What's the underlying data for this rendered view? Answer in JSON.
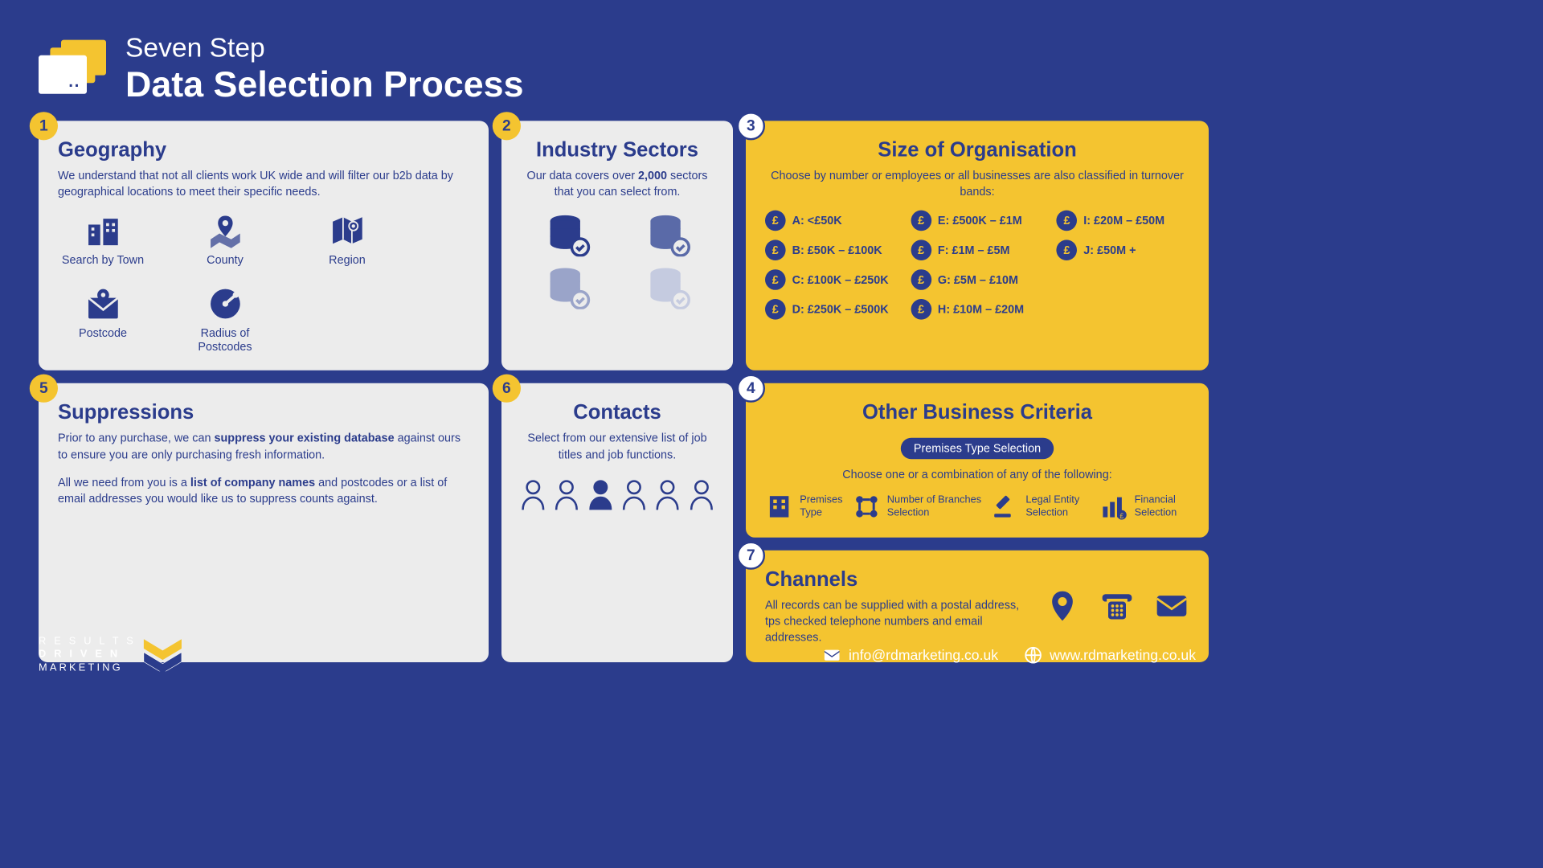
{
  "colors": {
    "bg": "#2b3c8c",
    "yellow": "#f4c430",
    "white": "#ececec",
    "text": "#2b3c8c"
  },
  "title": {
    "line1": "Seven Step",
    "line2": "Data Selection Process"
  },
  "step1": {
    "num": "1",
    "title": "Geography",
    "desc": "We understand that not all clients work UK wide and will filter our b2b data by geographical locations to meet their specific needs.",
    "items": [
      "Search by Town",
      "County",
      "Region",
      "Postcode",
      "Radius of Postcodes"
    ]
  },
  "step2": {
    "num": "2",
    "title": "Industry Sectors",
    "desc_pre": "Our data covers over ",
    "desc_bold": "2,000",
    "desc_post": " sectors that you can select from."
  },
  "step3": {
    "num": "3",
    "title": "Size of Organisation",
    "desc": "Choose by number or employees or all businesses are also classified in turnover bands:",
    "bands": [
      "A: <£50K",
      "E: £500K – £1M",
      "I: £20M – £50M",
      "B: £50K – £100K",
      "F: £1M – £5M",
      "J: £50M +",
      "C: £100K – £250K",
      "G: £5M – £10M",
      "",
      "D: £250K – £500K",
      "H: £10M – £20M",
      ""
    ]
  },
  "step4": {
    "num": "4",
    "title": "Other Business Criteria",
    "pill": "Premises Type Selection",
    "desc": "Choose one or a combination of any of the following:",
    "items": [
      "Premises Type",
      "Number of Branches Selection",
      "Legal Entity Selection",
      "Financial Selection"
    ]
  },
  "step5": {
    "num": "5",
    "title": "Suppressions",
    "p1_pre": "Prior to any purchase, we can ",
    "p1_bold": "suppress your existing database",
    "p1_post": " against ours to ensure you are only purchasing fresh information.",
    "p2_pre": "All we need from you is a ",
    "p2_bold": "list of company names",
    "p2_post": " and postcodes or a list of email addresses you would like us to suppress counts against."
  },
  "step6": {
    "num": "6",
    "title": "Contacts",
    "desc": "Select from our extensive list of job titles and job functions."
  },
  "step7": {
    "num": "7",
    "title": "Channels",
    "desc": "All records can be supplied with a postal address, tps checked telephone numbers and email addresses."
  },
  "footer": {
    "brand_l1": "R E S U L T S",
    "brand_l2": "D R I V E N",
    "brand_l3": "MARKETING",
    "email": "info@rdmarketing.co.uk",
    "web": "www.rdmarketing.co.uk"
  }
}
